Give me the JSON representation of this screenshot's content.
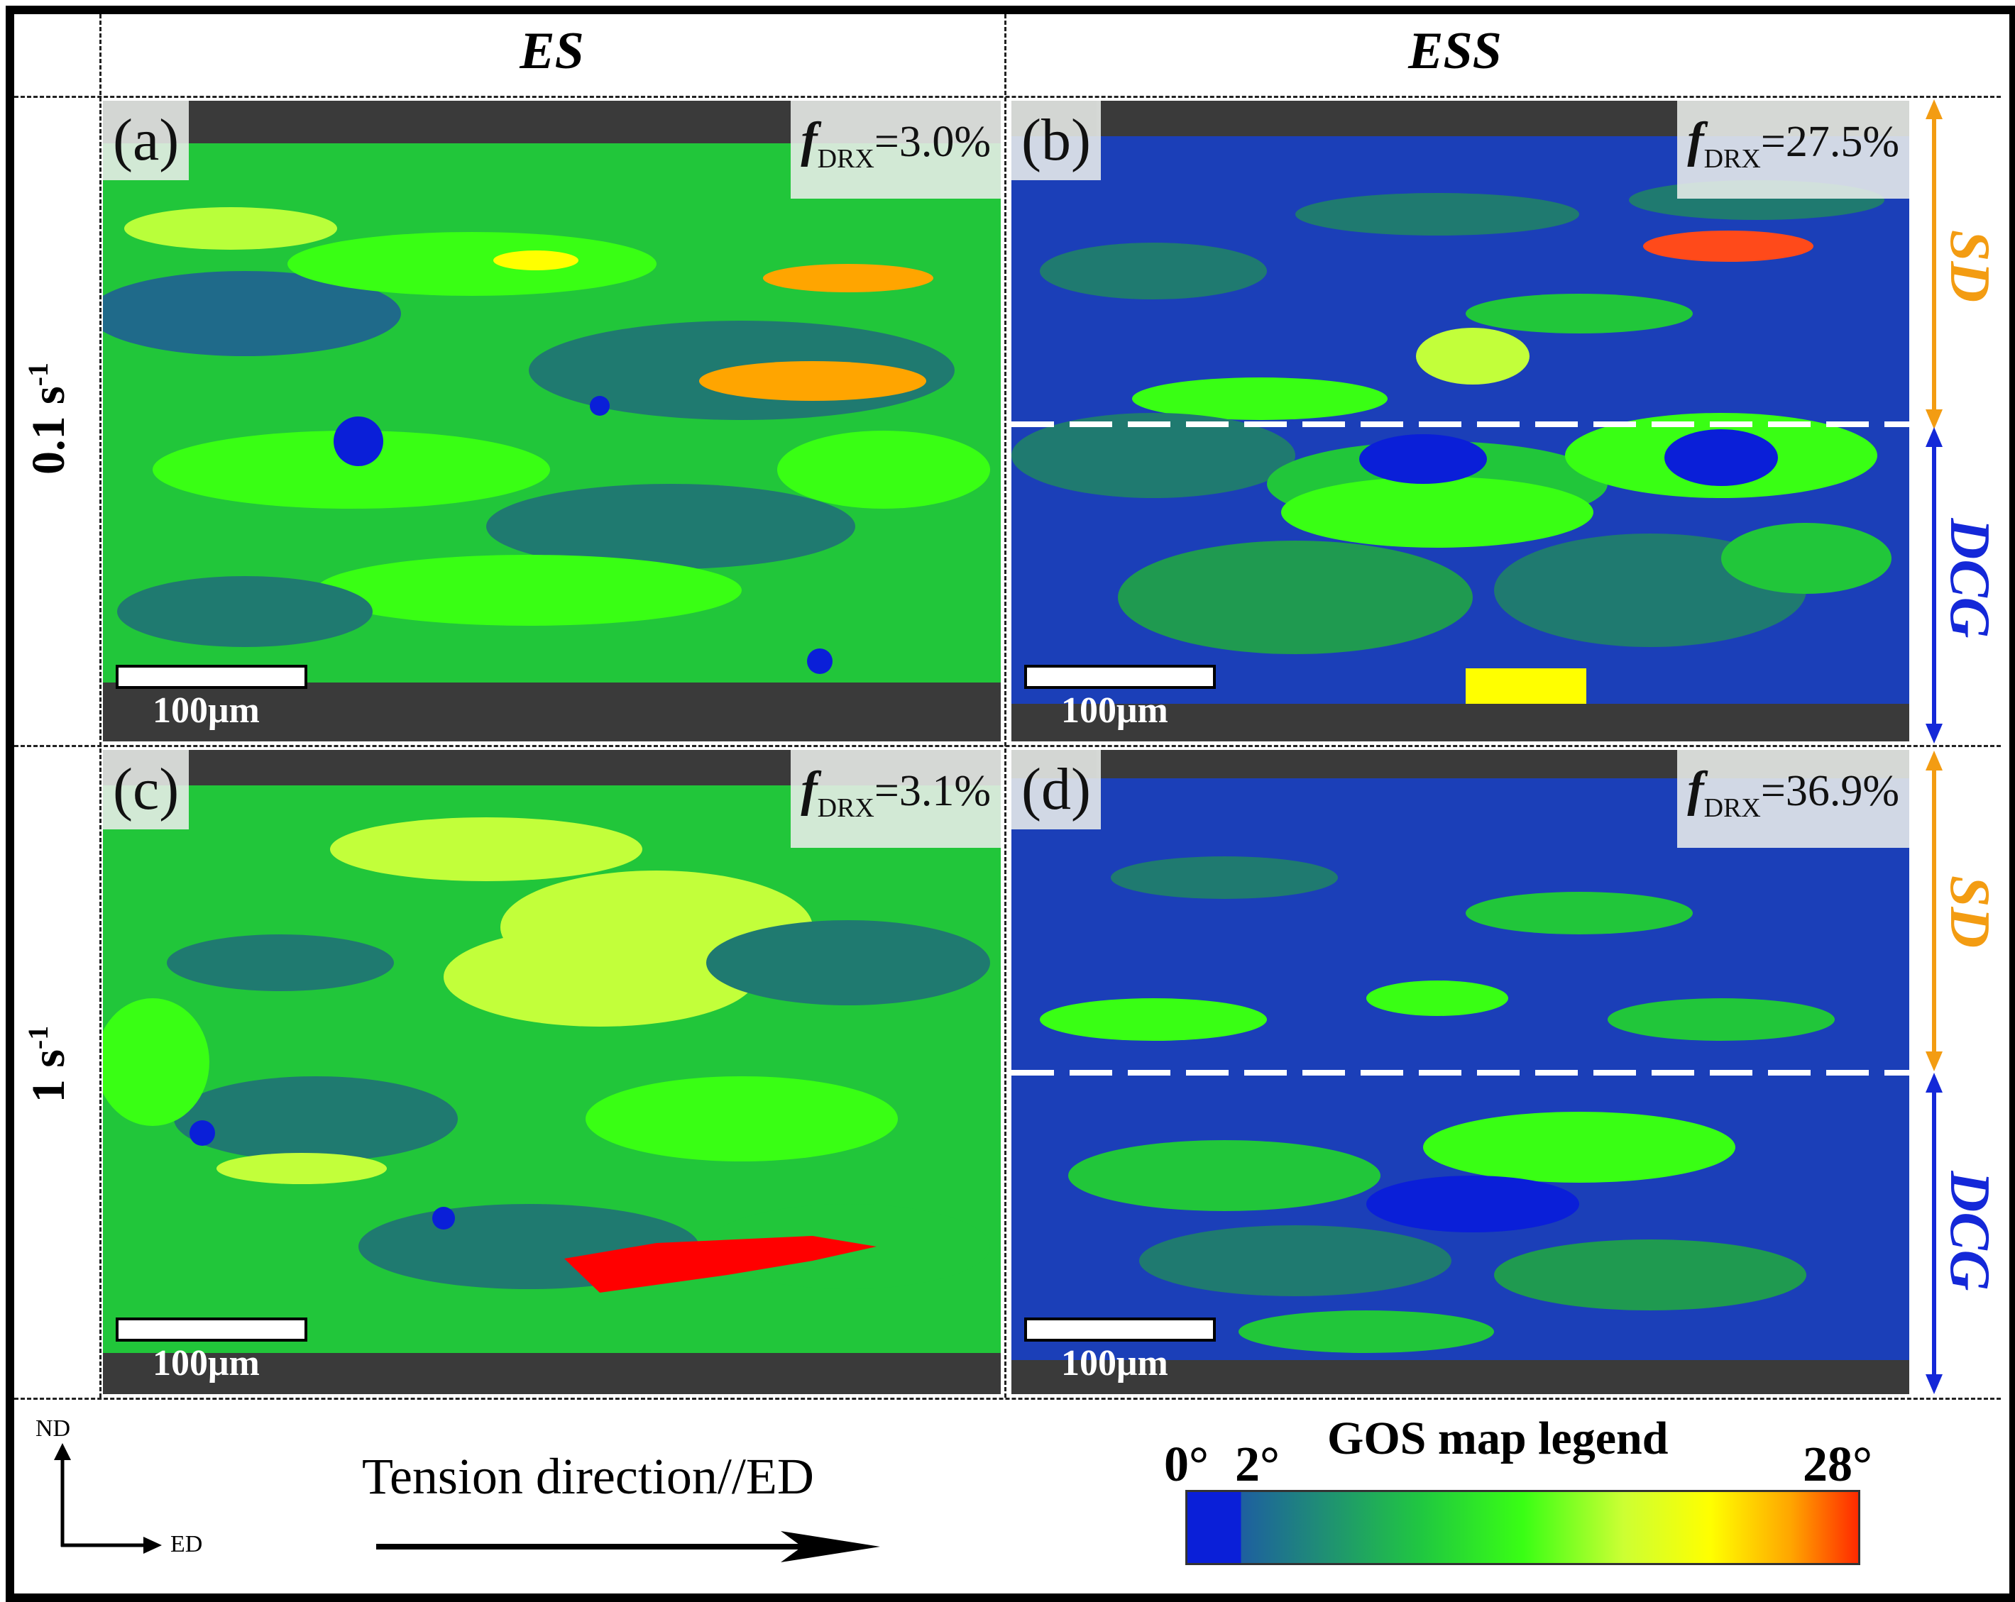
{
  "columns": [
    "ES",
    "ESS"
  ],
  "rows": [
    "0.1 s",
    "1 s"
  ],
  "row_superscript": "-1",
  "panels": [
    {
      "label": "(a)",
      "fdrx_prefix": "f",
      "fdrx_sub": "DRX",
      "fdrx_value": "=3.0%",
      "scale": "100μm"
    },
    {
      "label": "(b)",
      "fdrx_prefix": "f",
      "fdrx_sub": "DRX",
      "fdrx_value": "=27.5%",
      "scale": "100μm"
    },
    {
      "label": "(c)",
      "fdrx_prefix": "f",
      "fdrx_sub": "DRX",
      "fdrx_value": "=3.1%",
      "scale": "100μm"
    },
    {
      "label": "(d)",
      "fdrx_prefix": "f",
      "fdrx_sub": "DRX",
      "fdrx_value": "=36.9%",
      "scale": "100μm"
    }
  ],
  "zones": {
    "top": "SD",
    "bottom": "DCG",
    "top_color": "#f39c12",
    "bottom_color": "#1428d8"
  },
  "axes": {
    "vertical": "ND",
    "horizontal": "ED"
  },
  "tension_label": "Tension direction//ED",
  "legend": {
    "title": "GOS map legend",
    "tick_min": "0°",
    "tick_mid": "2°",
    "tick_max": "28°",
    "colors": [
      "#0a1fd8",
      "#1e5fa0",
      "#20c840",
      "#39ff14",
      "#ccff33",
      "#ffff00",
      "#ffa500",
      "#ff2a00"
    ]
  }
}
